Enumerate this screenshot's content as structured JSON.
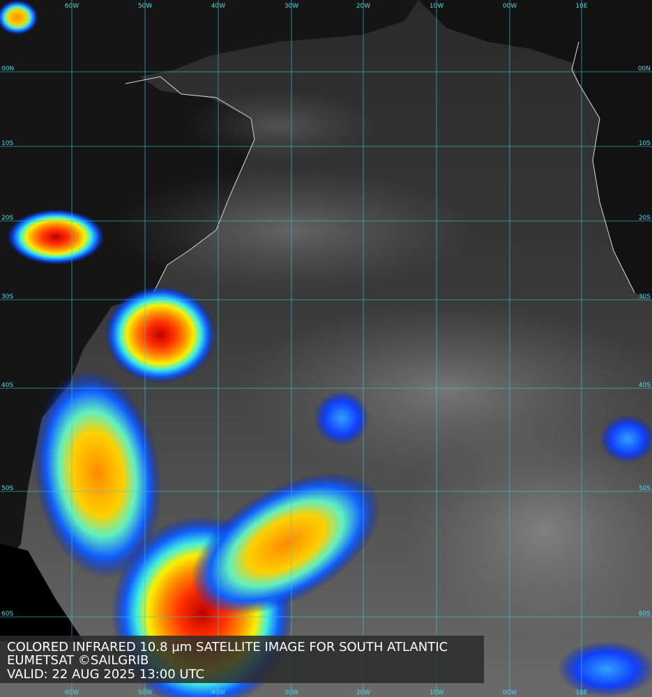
{
  "grid": {
    "longitudes": [
      "60W",
      "50W",
      "40W",
      "30W",
      "20W",
      "10W",
      "00W",
      "10E"
    ],
    "latitudes": [
      "00N",
      "10S",
      "20S",
      "30S",
      "40S",
      "50S",
      "60S"
    ]
  },
  "caption": {
    "lines": [
      "COLORED INFRARED 10.8 µm SATELLITE IMAGE FOR SOUTH ATLANTIC",
      "EUMETSAT ©SAILGRIB",
      "VALID:  22 AUG 2025 13:00 UTC"
    ]
  }
}
